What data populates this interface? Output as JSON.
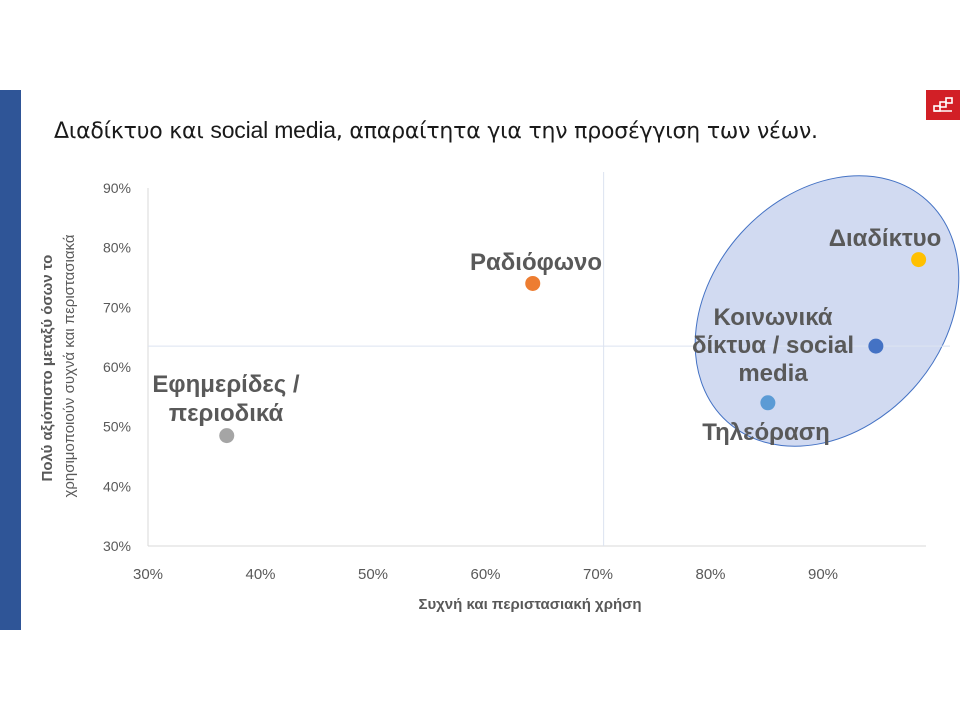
{
  "slide": {
    "title_part1": "Διαδίκτυο και ",
    "title_part2": "social media",
    "title_part3": ", απαραίτητα για την προσέγγιση των νέων.",
    "logo_icon": "brand-logo-icon",
    "accent_color": "#2f5597",
    "logo_color": "#d21f26"
  },
  "chart_data": {
    "type": "scatter",
    "title": "",
    "xlabel": "Συχνή και περιστασιακή χρήση",
    "ylabel_line1": "Πολύ αξιόπιστο μεταξύ όσων το",
    "ylabel_line2": "χρησιμοποιούν συχνά και περιστασιακά",
    "xlim": [
      30,
      100
    ],
    "ylim": [
      30,
      90
    ],
    "x_ticks": [
      "30%",
      "40%",
      "50%",
      "60%",
      "70%",
      "80%",
      "90%"
    ],
    "y_ticks": [
      "30%",
      "40%",
      "50%",
      "60%",
      "70%",
      "80%",
      "90%"
    ],
    "reference_lines": {
      "x": 70.5,
      "y": 63.5
    },
    "highlight_ellipse": {
      "color": "#c9d4ef",
      "stroke": "#4472c4"
    },
    "points": [
      {
        "label_lines": [
          "Εφημερίδες /",
          "περιοδικά"
        ],
        "x": 37,
        "y": 48.5,
        "color": "#a5a5a5"
      },
      {
        "label_lines": [
          "Ραδιόφωνο"
        ],
        "x": 64.2,
        "y": 74,
        "color": "#ed7d31"
      },
      {
        "label_lines": [
          "Διαδίκτυο"
        ],
        "x": 98.5,
        "y": 78,
        "color": "#ffc000"
      },
      {
        "label_lines": [
          "Κοινωνικά",
          "δίκτυα / social",
          "media"
        ],
        "x": 94.7,
        "y": 63.5,
        "color": "#4472c4"
      },
      {
        "label_lines": [
          "Τηλεόραση"
        ],
        "x": 85.1,
        "y": 54,
        "color": "#5b9bd5"
      }
    ],
    "grid": false,
    "legend": "none"
  }
}
